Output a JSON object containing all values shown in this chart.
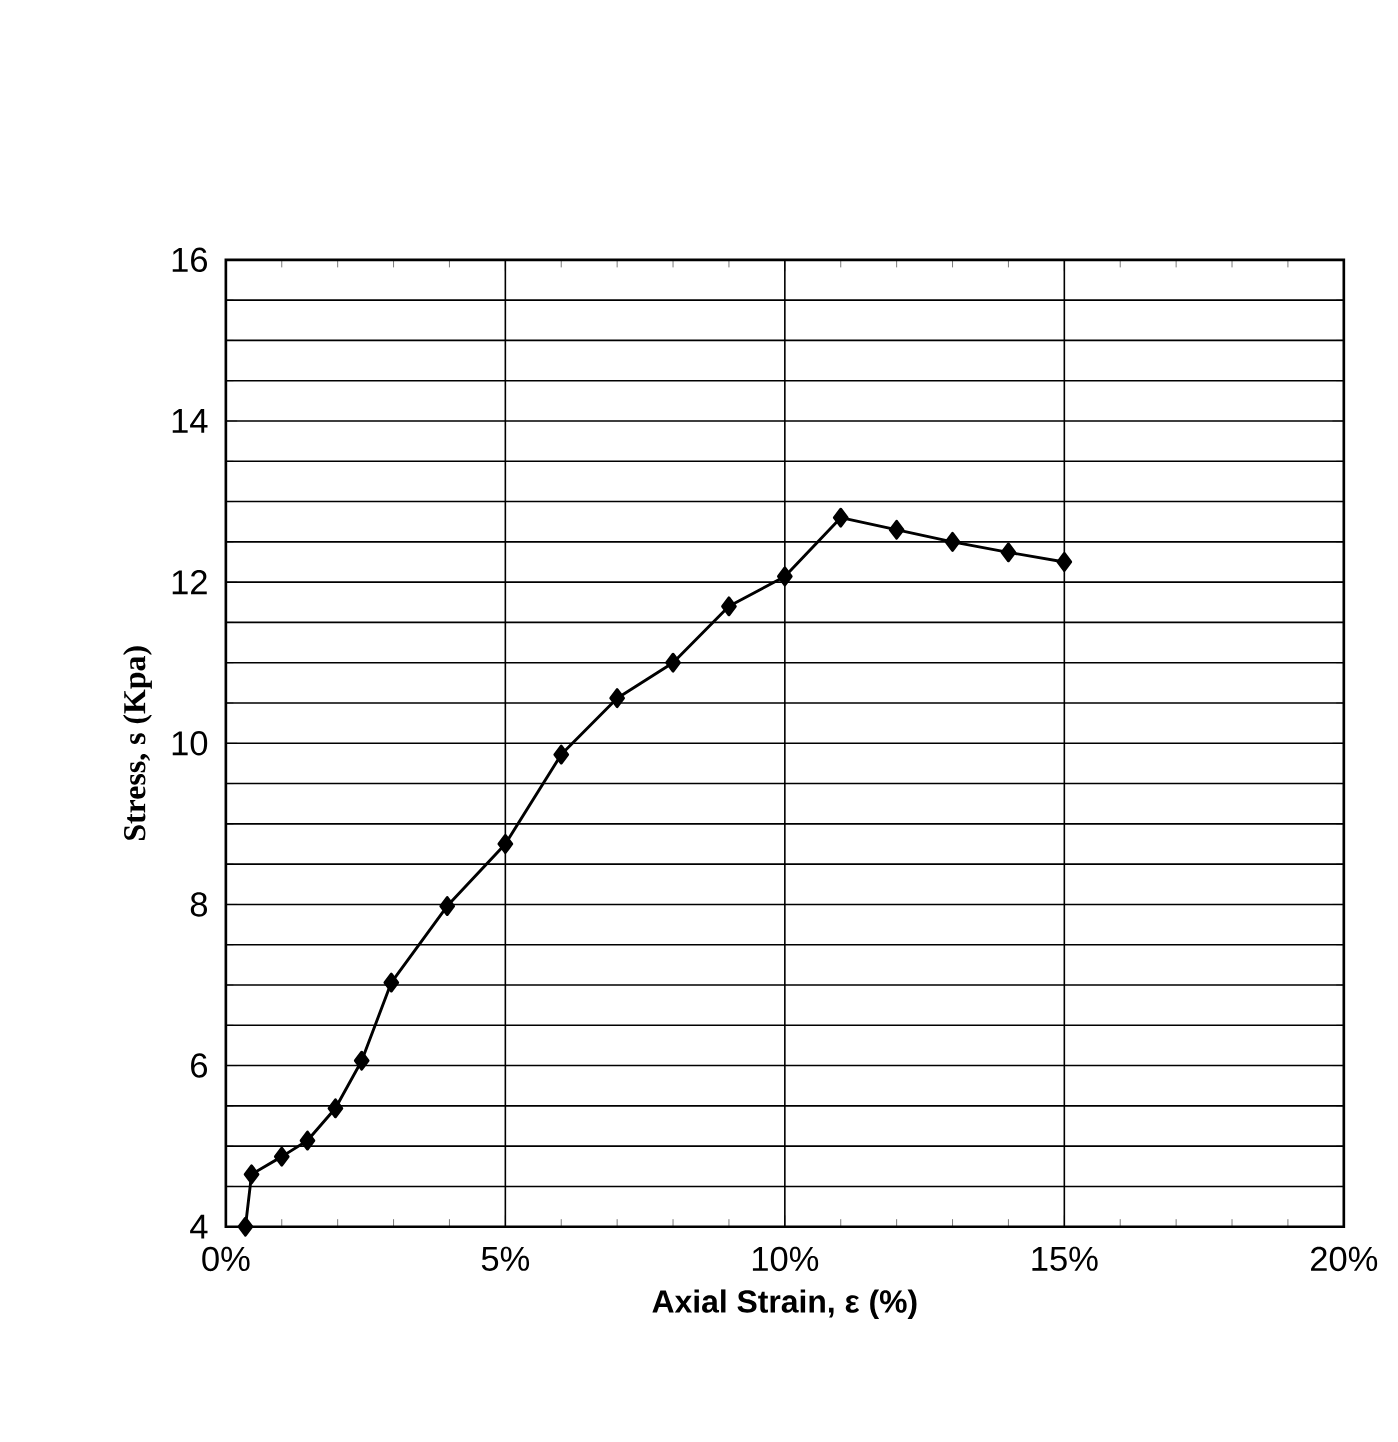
{
  "chart_data": {
    "type": "line",
    "xlabel": "Axial Strain, ε (%)",
    "ylabel": "Stress, s (Kpa)",
    "x": [
      0.35,
      0.46,
      1.0,
      1.46,
      1.96,
      2.43,
      2.96,
      3.96,
      5.0,
      6.0,
      7.0,
      8.0,
      9.0,
      10.0,
      11.0,
      12.0,
      13.0,
      14.0,
      15.0
    ],
    "series": [
      {
        "color": "#000000",
        "values": [
          4.0,
          4.65,
          4.87,
          5.07,
          5.47,
          6.06,
          7.03,
          7.98,
          8.75,
          9.86,
          10.56,
          11.0,
          11.7,
          12.07,
          12.8,
          12.65,
          12.5,
          12.37,
          12.25
        ]
      }
    ],
    "xlim": [
      0,
      20
    ],
    "ylim": [
      4,
      16
    ],
    "xticks": [
      {
        "value": 0,
        "label": "0%"
      },
      {
        "value": 5,
        "label": "5%"
      },
      {
        "value": 10,
        "label": "10%"
      },
      {
        "value": 15,
        "label": "15%"
      },
      {
        "value": 20,
        "label": "20%"
      }
    ],
    "yticks": [
      4,
      6,
      8,
      10,
      12,
      14,
      16
    ],
    "grid": true,
    "marker": "diamond",
    "line_style": "solid"
  }
}
